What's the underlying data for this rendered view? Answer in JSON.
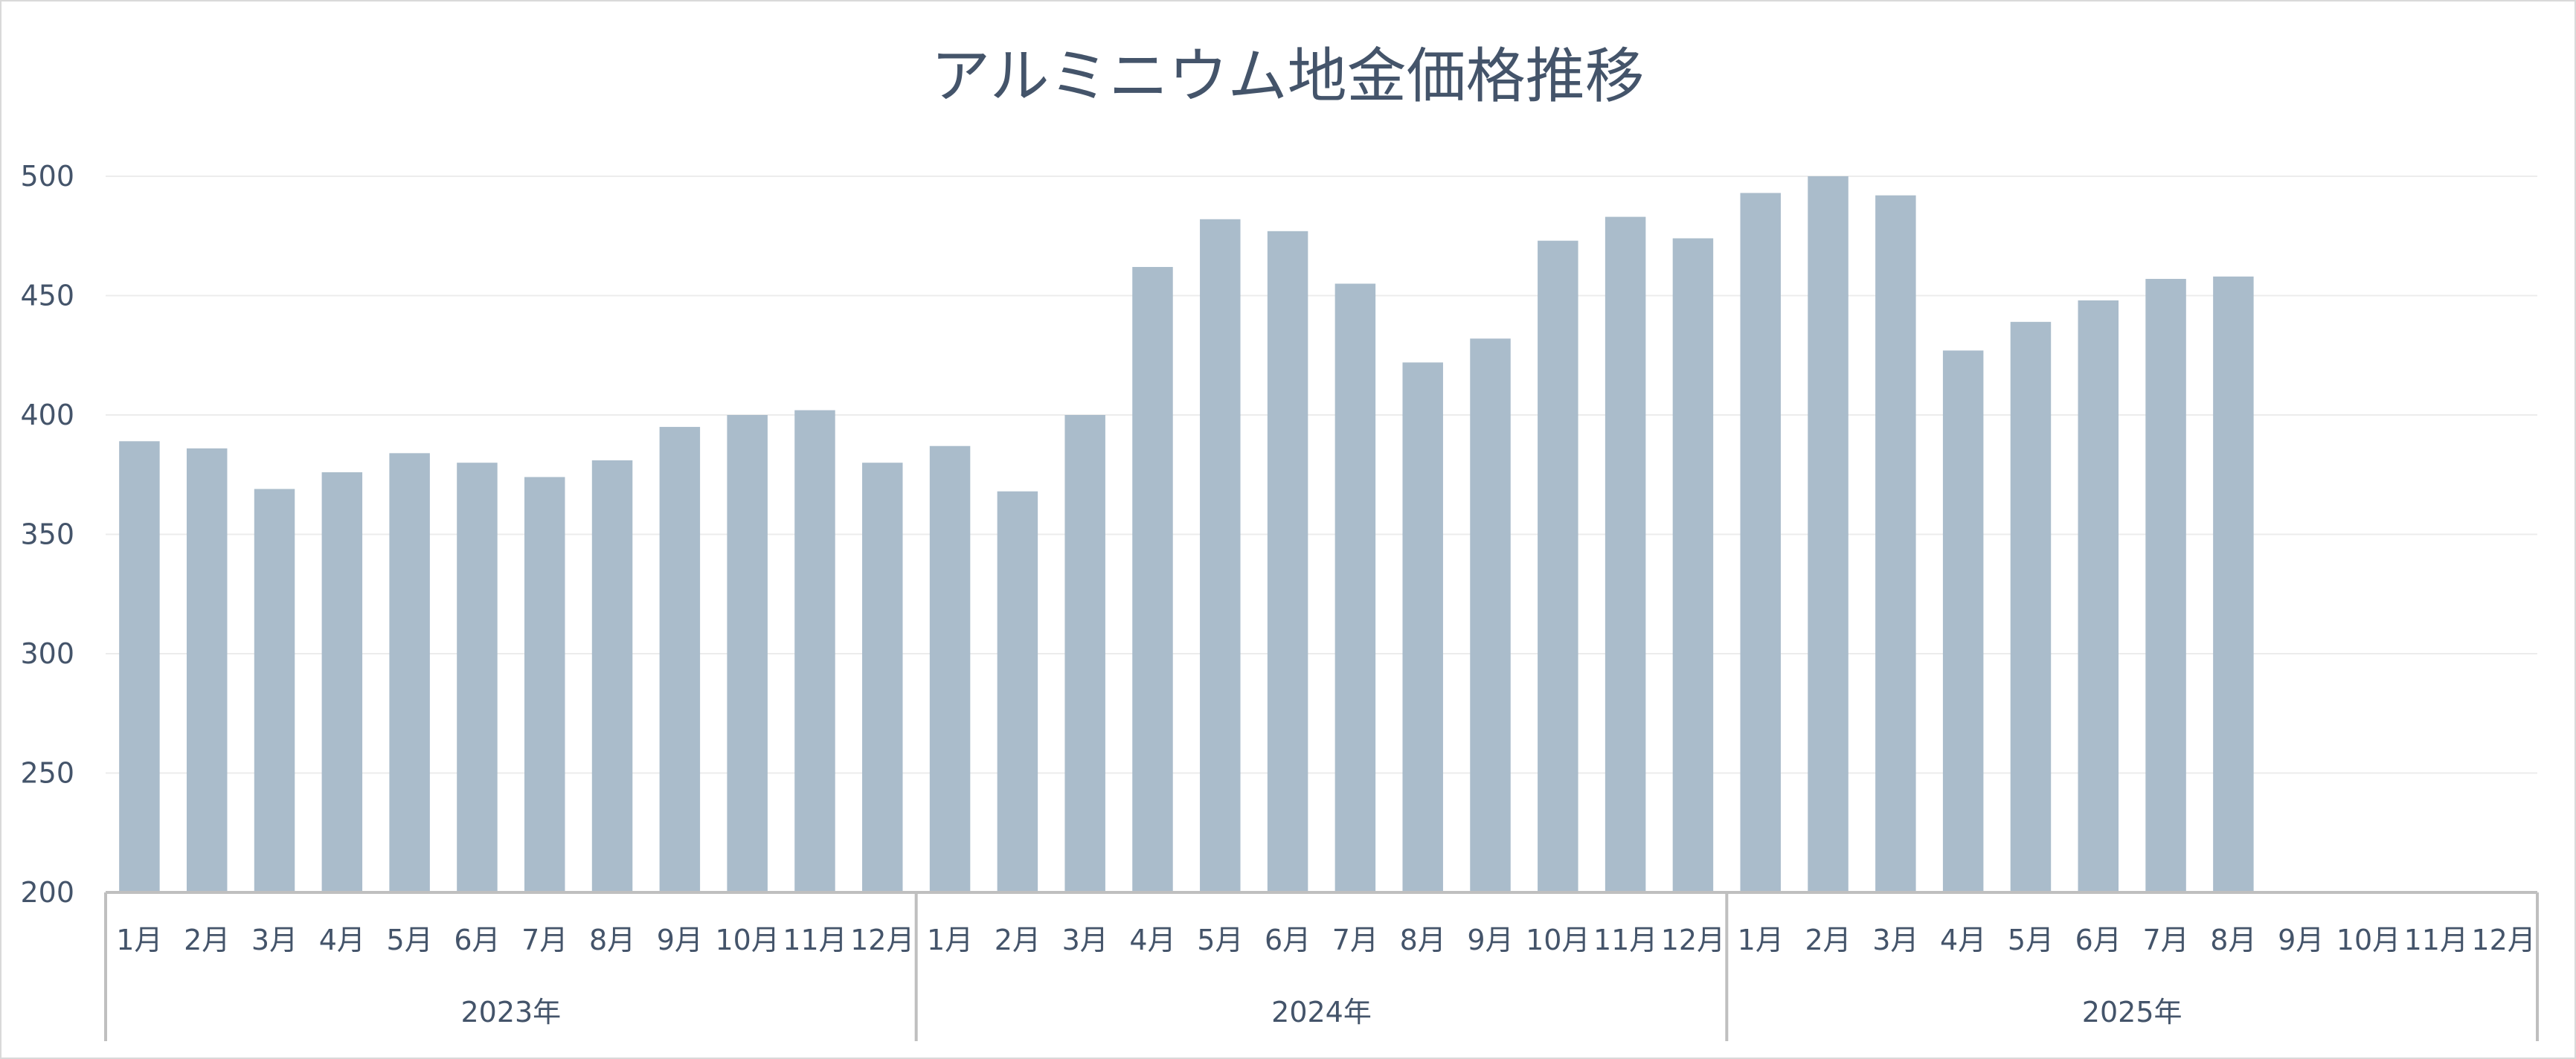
{
  "chart_data": {
    "type": "bar",
    "title": "アルミニウム地金価格推移",
    "xlabel": "",
    "ylabel": "",
    "ylim": [
      200,
      500
    ],
    "yticks": [
      200,
      250,
      300,
      350,
      400,
      450,
      500
    ],
    "grid": true,
    "legend": "none",
    "bar_color": "#aabccb",
    "groups": [
      {
        "label": "2023年",
        "categories": [
          "1月",
          "2月",
          "3月",
          "4月",
          "5月",
          "6月",
          "7月",
          "8月",
          "9月",
          "10月",
          "11月",
          "12月"
        ],
        "values": [
          389,
          386,
          369,
          376,
          384,
          380,
          374,
          381,
          395,
          400,
          402,
          380
        ]
      },
      {
        "label": "2024年",
        "categories": [
          "1月",
          "2月",
          "3月",
          "4月",
          "5月",
          "6月",
          "7月",
          "8月",
          "9月",
          "10月",
          "11月",
          "12月"
        ],
        "values": [
          387,
          368,
          400,
          462,
          482,
          477,
          455,
          422,
          432,
          473,
          483,
          474
        ]
      },
      {
        "label": "2025年",
        "categories": [
          "1月",
          "2月",
          "3月",
          "4月",
          "5月",
          "6月",
          "7月",
          "8月",
          "9月",
          "10月",
          "11月",
          "12月"
        ],
        "values": [
          493,
          500,
          492,
          427,
          439,
          448,
          457,
          458,
          null,
          null,
          null,
          null
        ]
      }
    ]
  }
}
